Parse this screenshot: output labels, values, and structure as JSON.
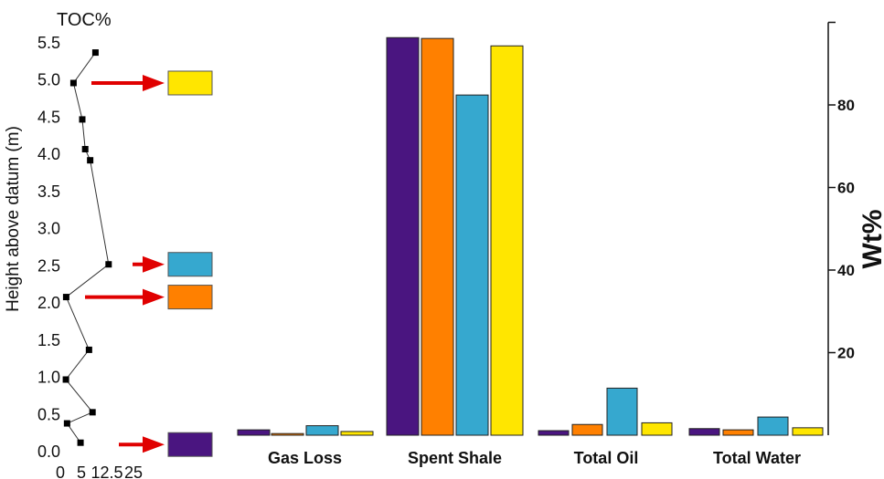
{
  "chart_data": [
    {
      "type": "scatter",
      "title": "TOC%",
      "xlabel": "",
      "ylabel": "Height above datum (m)",
      "xlim": [
        0,
        25
      ],
      "ylim": [
        0,
        5.5
      ],
      "x_ticks": [
        "0",
        "5",
        "12.5",
        "25"
      ],
      "y_ticks": [
        "0.0",
        "0.5",
        "1.0",
        "1.5",
        "2.0",
        "2.5",
        "3.0",
        "3.5",
        "4.0",
        "4.5",
        "5.0",
        "5.5"
      ],
      "points": [
        {
          "x": 6.9,
          "y": 0.12
        },
        {
          "x": 2.3,
          "y": 0.38
        },
        {
          "x": 11.0,
          "y": 0.53
        },
        {
          "x": 1.9,
          "y": 0.97
        },
        {
          "x": 9.8,
          "y": 1.37
        },
        {
          "x": 2.0,
          "y": 2.08
        },
        {
          "x": 16.5,
          "y": 2.52
        },
        {
          "x": 10.2,
          "y": 3.92
        },
        {
          "x": 8.5,
          "y": 4.07
        },
        {
          "x": 7.5,
          "y": 4.47
        },
        {
          "x": 4.5,
          "y": 4.96
        },
        {
          "x": 12.0,
          "y": 5.37
        }
      ],
      "marked_samples": [
        {
          "y": 0.12,
          "color": "#4a1580"
        },
        {
          "y": 2.08,
          "color": "#ff8000"
        },
        {
          "y": 2.52,
          "color": "#36a8cf"
        },
        {
          "y": 4.96,
          "color": "#ffe600"
        }
      ]
    },
    {
      "type": "bar",
      "categories": [
        "Gas Loss",
        "Spent Shale",
        "Total Oil",
        "Total Water"
      ],
      "ylabel": "Wt%",
      "ylim": [
        0,
        100
      ],
      "y_ticks": [
        20,
        40,
        60,
        80
      ],
      "series": [
        {
          "color": "#4a1580",
          "values": [
            1.3,
            96.3,
            1.1,
            1.6
          ]
        },
        {
          "color": "#ff8000",
          "values": [
            0.4,
            96.1,
            2.6,
            1.3
          ]
        },
        {
          "color": "#36a8cf",
          "values": [
            2.3,
            82.4,
            11.4,
            4.4
          ]
        },
        {
          "color": "#ffe600",
          "values": [
            0.9,
            94.3,
            3.0,
            1.8
          ]
        }
      ]
    }
  ]
}
